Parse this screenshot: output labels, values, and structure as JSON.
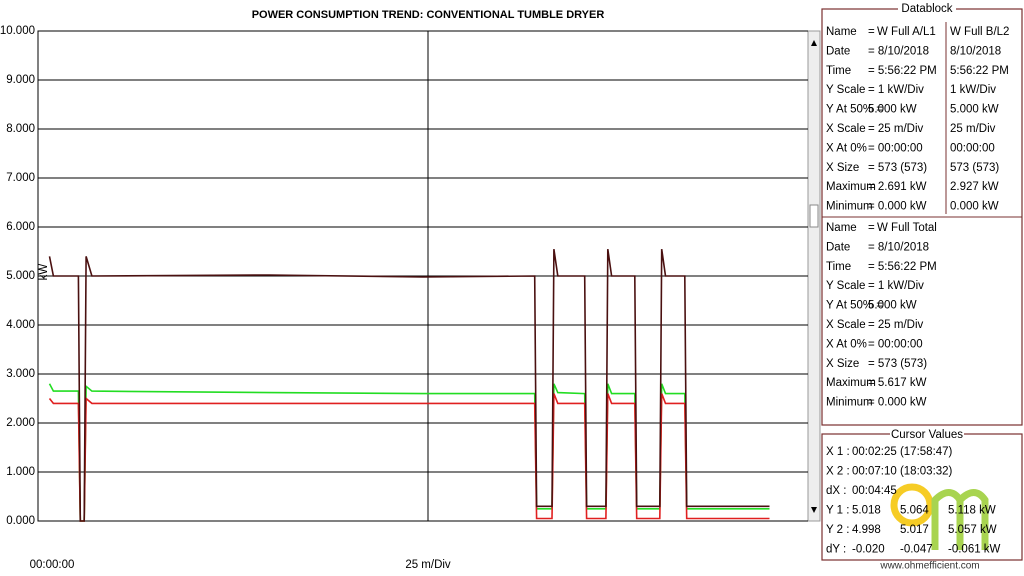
{
  "chart_data": {
    "type": "line",
    "title": "POWER CONSUMPTION TREND: CONVENTIONAL TUMBLE DRYER",
    "y_label": "kW",
    "x_start_label": "00:00:00",
    "x_scale_label": "25 m/Div",
    "xlim": [
      0,
      200
    ],
    "ylim": [
      0,
      10
    ],
    "yticks": [
      {
        "value": 0,
        "label": "0.000"
      },
      {
        "value": 1,
        "label": "1.000"
      },
      {
        "value": 2,
        "label": "2.000"
      },
      {
        "value": 3,
        "label": "3.000"
      },
      {
        "value": 4,
        "label": "4.000"
      },
      {
        "value": 5,
        "label": "5.000"
      },
      {
        "value": 6,
        "label": "6.000"
      },
      {
        "value": 7,
        "label": "7.000"
      },
      {
        "value": 8,
        "label": "8.000"
      },
      {
        "value": 9,
        "label": "9.000"
      },
      {
        "value": 10,
        "label": "10.000"
      }
    ],
    "grid": true,
    "x": [
      3,
      4,
      10.5,
      11,
      12,
      12.5,
      14,
      60,
      100,
      129,
      129.5,
      133.5,
      134,
      135,
      142,
      142.5,
      147.5,
      148,
      149,
      155,
      155.5,
      161.5,
      162,
      163,
      168,
      168.5,
      190
    ],
    "series": [
      {
        "name": "W Full B/L2",
        "color": "#22dd22",
        "values": [
          2.8,
          2.65,
          2.65,
          0,
          0,
          2.75,
          2.65,
          2.62,
          2.6,
          2.6,
          0.25,
          0.25,
          2.8,
          2.62,
          2.6,
          0.25,
          0.25,
          2.8,
          2.6,
          2.6,
          0.25,
          0.25,
          2.8,
          2.6,
          2.6,
          0.25,
          0.25
        ]
      },
      {
        "name": "W Full A/L1",
        "color": "#e02020",
        "values": [
          2.5,
          2.4,
          2.4,
          0,
          0,
          2.5,
          2.4,
          2.4,
          2.4,
          2.4,
          0.05,
          0.05,
          2.6,
          2.4,
          2.4,
          0.05,
          0.05,
          2.6,
          2.4,
          2.4,
          0.05,
          0.05,
          2.6,
          2.4,
          2.4,
          0.05,
          0.05
        ]
      },
      {
        "name": "W Full Total",
        "color": "#4a1010",
        "values": [
          5.4,
          5.0,
          5.0,
          0,
          0,
          5.4,
          5.0,
          5.02,
          4.98,
          5.0,
          0.3,
          0.3,
          5.55,
          5.0,
          5.0,
          0.3,
          0.3,
          5.55,
          5.0,
          5.0,
          0.3,
          0.3,
          5.55,
          5.0,
          5.0,
          0.3,
          0.3
        ]
      }
    ]
  },
  "datablock": {
    "title": "Datablock",
    "block1": {
      "name_label": "Name",
      "name_eq": "=",
      "rows": [
        [
          "Date",
          "= 8/10/2018",
          "8/10/2018"
        ],
        [
          "Time",
          "= 5:56:22 PM",
          "5:56:22 PM"
        ],
        [
          "Y Scale",
          "=  1    kW/Div",
          "1    kW/Div"
        ],
        [
          "Y At 50% =",
          "5.000 kW",
          "5.000 kW"
        ],
        [
          "X Scale",
          "=  25    m/Div",
          "25    m/Div"
        ],
        [
          "X At 0%",
          "= 00:00:00",
          "00:00:00"
        ],
        [
          "X Size",
          "= 573 (573)",
          "573 (573)"
        ],
        [
          "Maximum",
          "=  2.691 kW",
          "2.927 kW"
        ],
        [
          "Minimum",
          "=  0.000 kW",
          "0.000 kW"
        ]
      ]
    },
    "block2": {
      "name_label": "Name",
      "name_eq": "=",
      "rows": [
        [
          "Date",
          "= 8/10/2018"
        ],
        [
          "Time",
          "= 5:56:22 PM"
        ],
        [
          "Y Scale",
          "=  1    kW/Div"
        ],
        [
          "Y At 50% =",
          "5.000 kW"
        ],
        [
          "X Scale",
          "=  25    m/Div"
        ],
        [
          "X At 0%",
          "= 00:00:00"
        ],
        [
          "X Size",
          "= 573 (573)"
        ],
        [
          "Maximum",
          "=  5.617 kW"
        ],
        [
          "Minimum",
          "=  0.000 kW"
        ]
      ]
    }
  },
  "cursor": {
    "title": "Cursor Values",
    "rows": [
      [
        "X 1 :",
        "00:02:25 (17:58:47)"
      ],
      [
        "X 2 :",
        "00:07:10 (18:03:32)"
      ],
      [
        "dX :",
        "00:04:45"
      ],
      [
        "Y 1 :",
        "5.018",
        "5.064",
        "5.118 kW"
      ],
      [
        "Y 2 :",
        "4.998",
        "5.017",
        "5.057 kW"
      ],
      [
        "dY :",
        "-0.020",
        "-0.047",
        "-0.061 kW"
      ]
    ]
  },
  "watermark": "www.ohmefficient.com"
}
